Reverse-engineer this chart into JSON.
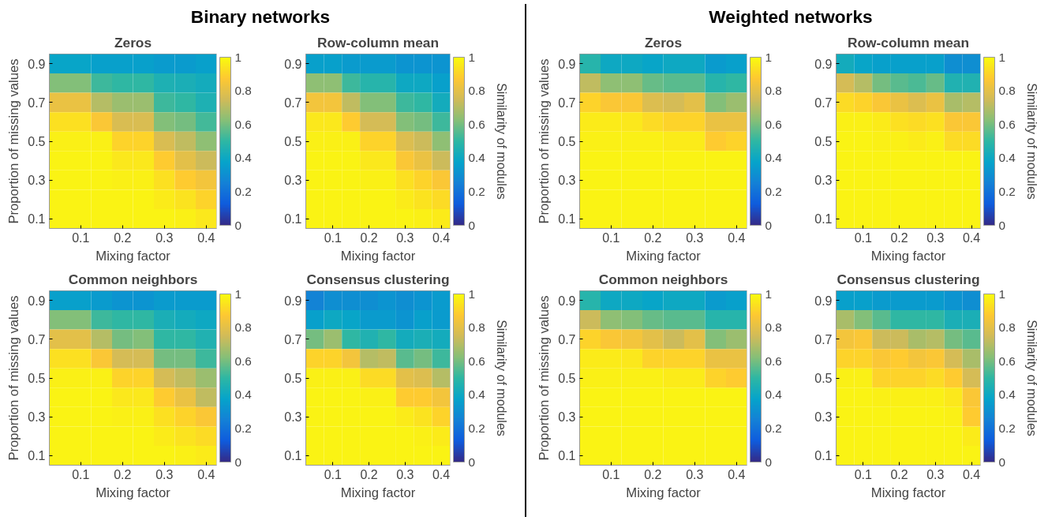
{
  "chart_data": [
    {
      "type": "heatmap",
      "title": "Zeros",
      "xlabel": "Mixing factor",
      "ylabel": "Proportion of missing values",
      "annotations": [
        "Binary networks"
      ],
      "x": [
        0.05,
        0.1,
        0.15,
        0.2,
        0.25,
        0.3,
        0.35,
        0.4
      ],
      "y": [
        0.9,
        0.8,
        0.7,
        0.6,
        0.5,
        0.4,
        0.3,
        0.2,
        0.1
      ],
      "xlim": [
        0.025,
        0.425
      ],
      "ylim": [
        0.05,
        0.95
      ],
      "xticks": [
        0.1,
        0.2,
        0.3,
        0.4
      ],
      "yticks": [
        0.1,
        0.3,
        0.5,
        0.7,
        0.9
      ],
      "clim": [
        0,
        1
      ],
      "cticks": [
        0,
        0.2,
        0.4,
        0.6,
        0.8,
        1
      ],
      "cells": [
        [
          0.38,
          0.38,
          0.36,
          0.36,
          0.36,
          0.34,
          0.34,
          0.36
        ],
        [
          0.62,
          0.62,
          0.52,
          0.5,
          0.5,
          0.45,
          0.44,
          0.42
        ],
        [
          0.82,
          0.82,
          0.7,
          0.66,
          0.66,
          0.52,
          0.5,
          0.45
        ],
        [
          0.93,
          0.93,
          0.86,
          0.77,
          0.77,
          0.62,
          0.6,
          0.53
        ],
        [
          0.97,
          0.97,
          0.97,
          0.9,
          0.9,
          0.77,
          0.72,
          0.64
        ],
        [
          0.98,
          0.98,
          0.98,
          0.95,
          0.95,
          0.88,
          0.8,
          0.74
        ],
        [
          0.98,
          0.98,
          0.98,
          0.97,
          0.97,
          0.93,
          0.88,
          0.84
        ],
        [
          0.98,
          0.98,
          0.98,
          0.98,
          0.98,
          0.96,
          0.94,
          0.9
        ],
        [
          0.98,
          0.98,
          0.98,
          0.98,
          0.98,
          0.98,
          0.97,
          0.95
        ]
      ]
    },
    {
      "type": "heatmap",
      "title": "Row-column mean",
      "xlabel": "Mixing factor",
      "clabel": "Similarity of modules",
      "x": [
        0.05,
        0.1,
        0.15,
        0.2,
        0.25,
        0.3,
        0.35,
        0.4
      ],
      "y": [
        0.9,
        0.8,
        0.7,
        0.6,
        0.5,
        0.4,
        0.3,
        0.2,
        0.1
      ],
      "xlim": [
        0.025,
        0.425
      ],
      "ylim": [
        0.05,
        0.95
      ],
      "xticks": [
        0.1,
        0.2,
        0.3,
        0.4
      ],
      "yticks": [
        0.1,
        0.3,
        0.5,
        0.7,
        0.9
      ],
      "clim": [
        0,
        1
      ],
      "cticks": [
        0,
        0.2,
        0.4,
        0.6,
        0.8,
        1
      ],
      "cells": [
        [
          0.36,
          0.36,
          0.34,
          0.34,
          0.34,
          0.32,
          0.32,
          0.32
        ],
        [
          0.64,
          0.64,
          0.52,
          0.48,
          0.48,
          0.4,
          0.4,
          0.36
        ],
        [
          0.84,
          0.84,
          0.72,
          0.62,
          0.62,
          0.52,
          0.5,
          0.42
        ],
        [
          0.95,
          0.95,
          0.88,
          0.76,
          0.76,
          0.62,
          0.6,
          0.52
        ],
        [
          0.97,
          0.97,
          0.97,
          0.9,
          0.9,
          0.78,
          0.74,
          0.64
        ],
        [
          0.98,
          0.98,
          0.98,
          0.95,
          0.95,
          0.86,
          0.82,
          0.74
        ],
        [
          0.98,
          0.98,
          0.98,
          0.97,
          0.97,
          0.93,
          0.9,
          0.86
        ],
        [
          0.98,
          0.98,
          0.98,
          0.98,
          0.98,
          0.96,
          0.94,
          0.92
        ],
        [
          0.98,
          0.98,
          0.98,
          0.98,
          0.98,
          0.98,
          0.97,
          0.96
        ]
      ]
    },
    {
      "type": "heatmap",
      "title": "Common neighbors",
      "xlabel": "Mixing factor",
      "ylabel": "Proportion of missing values",
      "x": [
        0.05,
        0.1,
        0.15,
        0.2,
        0.25,
        0.3,
        0.35,
        0.4
      ],
      "y": [
        0.9,
        0.8,
        0.7,
        0.6,
        0.5,
        0.4,
        0.3,
        0.2,
        0.1
      ],
      "xlim": [
        0.025,
        0.425
      ],
      "ylim": [
        0.05,
        0.95
      ],
      "xticks": [
        0.1,
        0.2,
        0.3,
        0.4
      ],
      "yticks": [
        0.1,
        0.3,
        0.5,
        0.7,
        0.9
      ],
      "clim": [
        0,
        1
      ],
      "cticks": [
        0,
        0.2,
        0.4,
        0.6,
        0.8,
        1
      ],
      "cells": [
        [
          0.36,
          0.36,
          0.34,
          0.32,
          0.32,
          0.34,
          0.34,
          0.34
        ],
        [
          0.62,
          0.62,
          0.52,
          0.5,
          0.5,
          0.44,
          0.42,
          0.4
        ],
        [
          0.8,
          0.8,
          0.7,
          0.6,
          0.62,
          0.5,
          0.5,
          0.46
        ],
        [
          0.93,
          0.93,
          0.86,
          0.76,
          0.76,
          0.6,
          0.6,
          0.52
        ],
        [
          0.97,
          0.97,
          0.97,
          0.9,
          0.9,
          0.76,
          0.72,
          0.66
        ],
        [
          0.98,
          0.98,
          0.98,
          0.95,
          0.95,
          0.88,
          0.82,
          0.72
        ],
        [
          0.98,
          0.98,
          0.98,
          0.97,
          0.97,
          0.93,
          0.9,
          0.86
        ],
        [
          0.98,
          0.98,
          0.98,
          0.98,
          0.98,
          0.96,
          0.94,
          0.92
        ],
        [
          0.98,
          0.98,
          0.98,
          0.98,
          0.98,
          0.98,
          0.97,
          0.96
        ]
      ]
    },
    {
      "type": "heatmap",
      "title": "Consensus clustering",
      "xlabel": "Mixing factor",
      "clabel": "Similarity of modules",
      "x": [
        0.05,
        0.1,
        0.15,
        0.2,
        0.25,
        0.3,
        0.35,
        0.4
      ],
      "y": [
        0.9,
        0.8,
        0.7,
        0.6,
        0.5,
        0.4,
        0.3,
        0.2,
        0.1
      ],
      "xlim": [
        0.025,
        0.425
      ],
      "ylim": [
        0.05,
        0.95
      ],
      "xticks": [
        0.1,
        0.2,
        0.3,
        0.4
      ],
      "yticks": [
        0.1,
        0.3,
        0.5,
        0.7,
        0.9
      ],
      "clim": [
        0,
        1
      ],
      "cticks": [
        0,
        0.2,
        0.4,
        0.6,
        0.8,
        1
      ],
      "cells": [
        [
          0.26,
          0.3,
          0.3,
          0.3,
          0.32,
          0.3,
          0.32,
          0.34
        ],
        [
          0.36,
          0.4,
          0.38,
          0.34,
          0.34,
          0.32,
          0.36,
          0.34
        ],
        [
          0.6,
          0.66,
          0.5,
          0.46,
          0.5,
          0.42,
          0.44,
          0.42
        ],
        [
          0.9,
          0.9,
          0.84,
          0.7,
          0.72,
          0.56,
          0.6,
          0.52
        ],
        [
          0.97,
          0.97,
          0.97,
          0.92,
          0.92,
          0.8,
          0.78,
          0.7
        ],
        [
          0.98,
          0.98,
          0.98,
          0.97,
          0.97,
          0.88,
          0.88,
          0.84
        ],
        [
          0.98,
          0.98,
          0.98,
          0.98,
          0.98,
          0.96,
          0.94,
          0.9
        ],
        [
          0.98,
          0.98,
          0.98,
          0.98,
          0.98,
          0.98,
          0.97,
          0.96
        ],
        [
          0.98,
          0.98,
          0.98,
          0.98,
          0.98,
          0.98,
          0.98,
          0.98
        ]
      ]
    },
    {
      "type": "heatmap",
      "title": "Zeros",
      "xlabel": "Mixing factor",
      "ylabel": "Proportion of missing values",
      "annotations": [
        "Weighted networks"
      ],
      "x": [
        0.05,
        0.1,
        0.15,
        0.2,
        0.25,
        0.3,
        0.35,
        0.4
      ],
      "y": [
        0.9,
        0.8,
        0.7,
        0.6,
        0.5,
        0.4,
        0.3,
        0.2,
        0.1
      ],
      "xlim": [
        0.025,
        0.425
      ],
      "ylim": [
        0.05,
        0.95
      ],
      "xticks": [
        0.1,
        0.2,
        0.3,
        0.4
      ],
      "yticks": [
        0.1,
        0.3,
        0.5,
        0.7,
        0.9
      ],
      "clim": [
        0,
        1
      ],
      "cticks": [
        0,
        0.2,
        0.4,
        0.6,
        0.8,
        1
      ],
      "cells": [
        [
          0.48,
          0.4,
          0.4,
          0.38,
          0.4,
          0.4,
          0.34,
          0.36
        ],
        [
          0.72,
          0.64,
          0.64,
          0.58,
          0.56,
          0.56,
          0.48,
          0.5
        ],
        [
          0.9,
          0.86,
          0.86,
          0.78,
          0.76,
          0.8,
          0.62,
          0.66
        ],
        [
          0.96,
          0.96,
          0.95,
          0.92,
          0.9,
          0.9,
          0.82,
          0.82
        ],
        [
          0.97,
          0.97,
          0.97,
          0.97,
          0.96,
          0.96,
          0.88,
          0.9
        ],
        [
          0.98,
          0.98,
          0.98,
          0.98,
          0.98,
          0.98,
          0.98,
          0.98
        ],
        [
          0.98,
          0.98,
          0.98,
          0.98,
          0.98,
          0.98,
          0.98,
          0.98
        ],
        [
          0.98,
          0.98,
          0.98,
          0.98,
          0.98,
          0.98,
          0.98,
          0.98
        ],
        [
          0.98,
          0.98,
          0.98,
          0.98,
          0.98,
          0.98,
          0.98,
          0.98
        ]
      ]
    },
    {
      "type": "heatmap",
      "title": "Row-column mean",
      "xlabel": "Mixing factor",
      "clabel": "Similarity of modules",
      "x": [
        0.05,
        0.1,
        0.15,
        0.2,
        0.25,
        0.3,
        0.35,
        0.4
      ],
      "y": [
        0.9,
        0.8,
        0.7,
        0.6,
        0.5,
        0.4,
        0.3,
        0.2,
        0.1
      ],
      "xlim": [
        0.025,
        0.425
      ],
      "ylim": [
        0.05,
        0.95
      ],
      "xticks": [
        0.1,
        0.2,
        0.3,
        0.4
      ],
      "yticks": [
        0.1,
        0.3,
        0.5,
        0.7,
        0.9
      ],
      "clim": [
        0,
        1
      ],
      "cticks": [
        0,
        0.2,
        0.4,
        0.6,
        0.8,
        1
      ],
      "cells": [
        [
          0.42,
          0.38,
          0.36,
          0.36,
          0.36,
          0.36,
          0.3,
          0.3
        ],
        [
          0.76,
          0.7,
          0.6,
          0.56,
          0.54,
          0.58,
          0.46,
          0.46
        ],
        [
          0.92,
          0.9,
          0.86,
          0.82,
          0.78,
          0.82,
          0.68,
          0.7
        ],
        [
          0.97,
          0.97,
          0.96,
          0.93,
          0.92,
          0.93,
          0.86,
          0.86
        ],
        [
          0.98,
          0.98,
          0.97,
          0.97,
          0.96,
          0.97,
          0.92,
          0.92
        ],
        [
          0.98,
          0.98,
          0.98,
          0.98,
          0.98,
          0.98,
          0.98,
          0.98
        ],
        [
          0.98,
          0.98,
          0.98,
          0.98,
          0.98,
          0.98,
          0.98,
          0.98
        ],
        [
          0.98,
          0.98,
          0.98,
          0.98,
          0.98,
          0.98,
          0.98,
          0.98
        ],
        [
          0.98,
          0.98,
          0.98,
          0.98,
          0.98,
          0.98,
          0.98,
          0.98
        ]
      ]
    },
    {
      "type": "heatmap",
      "title": "Common neighbors",
      "xlabel": "Mixing factor",
      "ylabel": "Proportion of missing values",
      "x": [
        0.05,
        0.1,
        0.15,
        0.2,
        0.25,
        0.3,
        0.35,
        0.4
      ],
      "y": [
        0.9,
        0.8,
        0.7,
        0.6,
        0.5,
        0.4,
        0.3,
        0.2,
        0.1
      ],
      "xlim": [
        0.025,
        0.425
      ],
      "ylim": [
        0.05,
        0.95
      ],
      "xticks": [
        0.1,
        0.2,
        0.3,
        0.4
      ],
      "yticks": [
        0.1,
        0.3,
        0.5,
        0.7,
        0.9
      ],
      "clim": [
        0,
        1
      ],
      "cticks": [
        0,
        0.2,
        0.4,
        0.6,
        0.8,
        1
      ],
      "cells": [
        [
          0.48,
          0.4,
          0.4,
          0.38,
          0.4,
          0.4,
          0.34,
          0.36
        ],
        [
          0.74,
          0.64,
          0.62,
          0.58,
          0.56,
          0.56,
          0.48,
          0.48
        ],
        [
          0.9,
          0.86,
          0.84,
          0.8,
          0.74,
          0.8,
          0.62,
          0.66
        ],
        [
          0.96,
          0.96,
          0.95,
          0.9,
          0.9,
          0.9,
          0.82,
          0.82
        ],
        [
          0.97,
          0.97,
          0.97,
          0.97,
          0.96,
          0.96,
          0.9,
          0.88
        ],
        [
          0.98,
          0.98,
          0.98,
          0.98,
          0.98,
          0.98,
          0.98,
          0.98
        ],
        [
          0.98,
          0.98,
          0.98,
          0.98,
          0.98,
          0.98,
          0.98,
          0.98
        ],
        [
          0.98,
          0.98,
          0.98,
          0.98,
          0.98,
          0.98,
          0.98,
          0.98
        ],
        [
          0.98,
          0.98,
          0.98,
          0.98,
          0.98,
          0.98,
          0.98,
          0.98
        ]
      ]
    },
    {
      "type": "heatmap",
      "title": "Consensus clustering",
      "xlabel": "Mixing factor",
      "clabel": "Similarity of modules",
      "x": [
        0.05,
        0.1,
        0.15,
        0.2,
        0.25,
        0.3,
        0.35,
        0.4
      ],
      "y": [
        0.9,
        0.8,
        0.7,
        0.6,
        0.5,
        0.4,
        0.3,
        0.2,
        0.1
      ],
      "xlim": [
        0.025,
        0.425
      ],
      "ylim": [
        0.05,
        0.95
      ],
      "xticks": [
        0.1,
        0.2,
        0.3,
        0.4
      ],
      "yticks": [
        0.1,
        0.3,
        0.5,
        0.7,
        0.9
      ],
      "clim": [
        0,
        1
      ],
      "cticks": [
        0,
        0.2,
        0.4,
        0.6,
        0.8,
        1
      ],
      "cells": [
        [
          0.36,
          0.36,
          0.34,
          0.34,
          0.34,
          0.34,
          0.32,
          0.3
        ],
        [
          0.68,
          0.62,
          0.56,
          0.5,
          0.5,
          0.5,
          0.44,
          0.44
        ],
        [
          0.84,
          0.86,
          0.74,
          0.74,
          0.68,
          0.7,
          0.6,
          0.56
        ],
        [
          0.9,
          0.9,
          0.86,
          0.88,
          0.84,
          0.86,
          0.76,
          0.68
        ],
        [
          0.97,
          0.97,
          0.9,
          0.9,
          0.9,
          0.92,
          0.88,
          0.76
        ],
        [
          0.98,
          0.98,
          0.97,
          0.97,
          0.97,
          0.97,
          0.95,
          0.86
        ],
        [
          0.98,
          0.98,
          0.98,
          0.98,
          0.98,
          0.98,
          0.97,
          0.88
        ],
        [
          0.98,
          0.98,
          0.98,
          0.98,
          0.98,
          0.98,
          0.98,
          0.96
        ],
        [
          0.98,
          0.98,
          0.98,
          0.98,
          0.98,
          0.98,
          0.98,
          0.98
        ]
      ]
    }
  ]
}
